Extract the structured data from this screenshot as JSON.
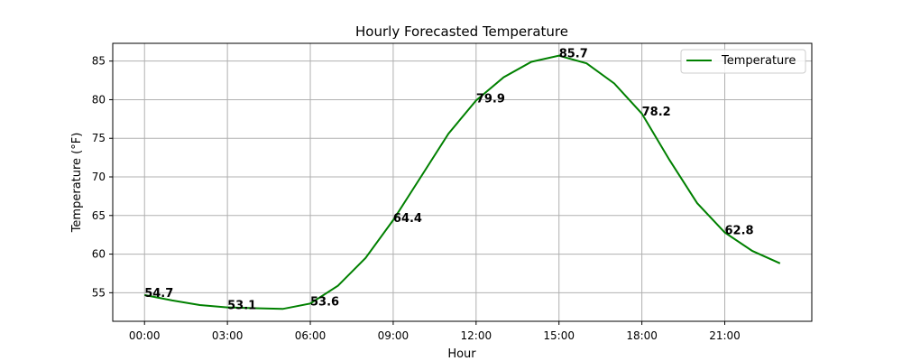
{
  "chart_data": {
    "type": "line",
    "title": "Hourly Forecasted Temperature",
    "xlabel": "Hour",
    "ylabel": "Temperature (°F)",
    "x": [
      0,
      1,
      2,
      3,
      4,
      5,
      6,
      7,
      8,
      9,
      10,
      11,
      12,
      13,
      14,
      15,
      16,
      17,
      18,
      19,
      20,
      21,
      22,
      23
    ],
    "xtick_values": [
      0,
      3,
      6,
      9,
      12,
      15,
      18,
      21
    ],
    "xtick_labels": [
      "00:00",
      "03:00",
      "06:00",
      "09:00",
      "12:00",
      "15:00",
      "18:00",
      "21:00"
    ],
    "yticks": [
      55,
      60,
      65,
      70,
      75,
      80,
      85
    ],
    "xlim": [
      -1.15,
      24.15
    ],
    "ylim": [
      51.3,
      87.3
    ],
    "grid": true,
    "legend_position": "top-right",
    "series": [
      {
        "name": "Temperature",
        "color": "#008000",
        "values": [
          54.7,
          54.0,
          53.4,
          53.1,
          53.0,
          52.9,
          53.6,
          55.9,
          59.5,
          64.4,
          70.0,
          75.6,
          79.9,
          82.9,
          84.9,
          85.7,
          84.7,
          82.1,
          78.2,
          72.2,
          66.6,
          62.8,
          60.4,
          58.8
        ]
      }
    ],
    "data_labels": [
      {
        "x": 0,
        "text": "54.7"
      },
      {
        "x": 3,
        "text": "53.1"
      },
      {
        "x": 6,
        "text": "53.6"
      },
      {
        "x": 9,
        "text": "64.4"
      },
      {
        "x": 12,
        "text": "79.9"
      },
      {
        "x": 15,
        "text": "85.7"
      },
      {
        "x": 18,
        "text": "78.2"
      },
      {
        "x": 21,
        "text": "62.8"
      }
    ]
  }
}
